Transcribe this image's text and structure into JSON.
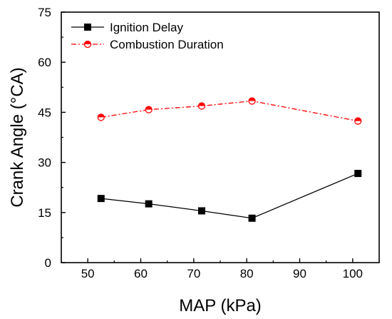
{
  "chart_data": {
    "type": "line",
    "title": "",
    "xlabel": "MAP (kPa)",
    "ylabel": "Crank Angle (°CA)",
    "xlim": [
      45,
      105
    ],
    "ylim": [
      0,
      75
    ],
    "xticks": [
      50,
      60,
      70,
      80,
      90,
      100
    ],
    "yticks": [
      0,
      15,
      30,
      45,
      60,
      75
    ],
    "grid": false,
    "legend_position": "top-left",
    "series": [
      {
        "name": "Ignition Delay",
        "x": [
          52.5,
          61.5,
          71.5,
          81,
          101
        ],
        "y": [
          19.2,
          17.6,
          15.5,
          13.3,
          26.7
        ],
        "color": "#000000",
        "marker": "filled-square",
        "line_style": "solid"
      },
      {
        "name": "Combustion Duration",
        "x": [
          52.5,
          61.5,
          71.5,
          81,
          101
        ],
        "y": [
          43.5,
          45.8,
          46.9,
          48.4,
          42.4
        ],
        "color": "#ff0000",
        "marker": "half-filled-circle",
        "line_style": "dash-dot"
      }
    ]
  }
}
